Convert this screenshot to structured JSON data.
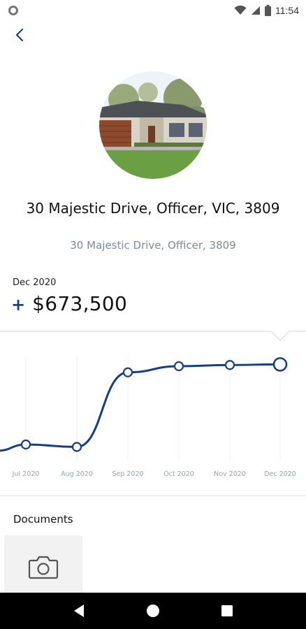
{
  "status": {
    "time": "11:54",
    "icons": [
      "wifi-icon",
      "signal-icon",
      "battery-icon"
    ]
  },
  "header": {
    "back_icon": "chevron-left-icon"
  },
  "property": {
    "title": "30 Majestic Drive, Officer, VIC, 3809",
    "subtitle": "30  Majestic Drive, Officer, 3809"
  },
  "valuation": {
    "period": "Dec 2020",
    "sign": "+",
    "value": "$673,500"
  },
  "chart_data": {
    "type": "line",
    "categories": [
      "Jul 2020",
      "Aug 2020",
      "Sep 2020",
      "Oct 2020",
      "Nov 2020",
      "Dec 2020"
    ],
    "series": [
      {
        "values": [
          608000,
          606000,
          667000,
          672000,
          673000,
          673500
        ]
      }
    ],
    "xlabel": "",
    "ylabel": "",
    "grid": false,
    "color": "#173d84"
  },
  "documents": {
    "title": "Documents",
    "card_icon": "camera-icon"
  },
  "navbar": {
    "items": [
      "back-nav-icon",
      "home-nav-icon",
      "recents-nav-icon"
    ]
  }
}
